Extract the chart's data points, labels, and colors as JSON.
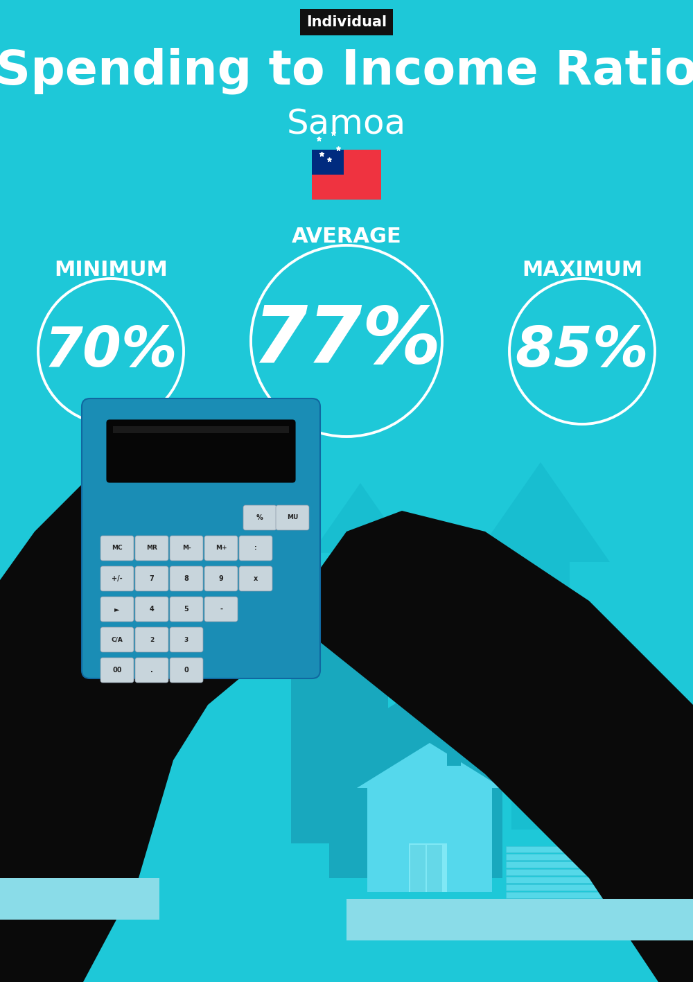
{
  "title": "Spending to Income Ratio",
  "subtitle": "Samoa",
  "tag_label": "Individual",
  "bg_color": "#1EC8D8",
  "min_value": "70%",
  "avg_value": "77%",
  "max_value": "85%",
  "min_label": "MINIMUM",
  "avg_label": "AVERAGE",
  "max_label": "MAXIMUM",
  "text_color": "white",
  "tag_bg": "#111111",
  "tag_text_color": "white",
  "circle_lw": 2.8,
  "arrow_color": "#18BDD0",
  "house_color_dark": "#18A8BE",
  "house_color_light": "#55D8EC",
  "calc_color": "#1A8DB5",
  "dark_silhouette": "#0A0A0A",
  "cuff_color": "#8ADCE8",
  "btn_color": "#C8D5DC",
  "money_bag_color": "#35B8CC",
  "dollar_color": "#B8A020",
  "flag_red": "#EF3340",
  "flag_blue": "#002B7F"
}
